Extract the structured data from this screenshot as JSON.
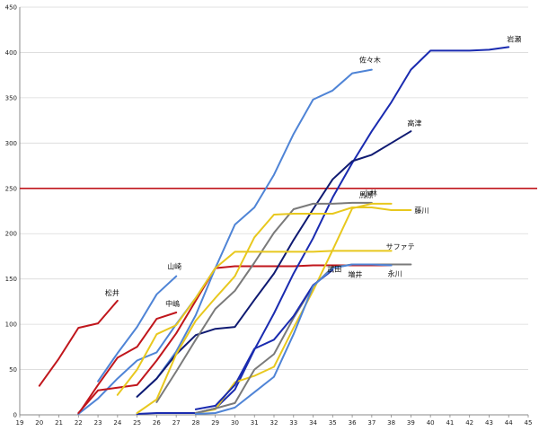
{
  "chart_data": {
    "type": "line",
    "title": "",
    "xlabel": "",
    "ylabel": "",
    "xlim": [
      19,
      45
    ],
    "ylim": [
      0,
      450
    ],
    "xticks": [
      19,
      20,
      21,
      22,
      23,
      24,
      25,
      26,
      27,
      28,
      29,
      30,
      31,
      32,
      33,
      34,
      35,
      36,
      37,
      38,
      39,
      40,
      41,
      42,
      43,
      44,
      45
    ],
    "yticks": [
      0,
      50,
      100,
      150,
      200,
      250,
      300,
      350,
      400,
      450
    ],
    "grid": "horizontal",
    "legend": "none",
    "reference_line": {
      "y": 250,
      "color": "#c0161c"
    },
    "series": [
      {
        "name": "松井",
        "color": "#c0161c",
        "x": [
          20,
          21,
          22,
          23,
          24
        ],
        "y": [
          32,
          62,
          96,
          101,
          126
        ]
      },
      {
        "name": "山崎",
        "color": "#4f84d6",
        "x": [
          23,
          24,
          25,
          26,
          27
        ],
        "y": [
          37,
          68,
          97,
          133,
          153
        ]
      },
      {
        "name": "中嶋",
        "color": "#c0161c",
        "x": [
          22,
          23,
          24,
          25,
          26,
          27
        ],
        "y": [
          1,
          33,
          63,
          75,
          106,
          113
        ]
      },
      {
        "name": "",
        "color": "#4f84d6",
        "x": [
          22,
          23,
          24,
          25,
          26,
          27,
          28,
          29
        ],
        "y": [
          1,
          18,
          40,
          60,
          69,
          100,
          129,
          162
        ]
      },
      {
        "name": "",
        "color": "#c0161c",
        "x": [
          22,
          23,
          24,
          25,
          26,
          27,
          28,
          29,
          30,
          31,
          32,
          33,
          34,
          35,
          36,
          37,
          38
        ],
        "y": [
          2,
          27,
          30,
          33,
          60,
          90,
          126,
          162,
          164,
          164,
          164,
          164,
          165,
          165,
          165,
          165,
          165
        ]
      },
      {
        "name": "佐々木",
        "color": "#4f84d6",
        "x": [
          25,
          26,
          27,
          28,
          29,
          30,
          31,
          32,
          33,
          34,
          35,
          36,
          37
        ],
        "y": [
          20,
          40,
          70,
          110,
          162,
          210,
          229,
          265,
          310,
          348,
          358,
          377,
          381
        ]
      },
      {
        "name": "岩瀬",
        "color": "#1a2bb0",
        "x": [
          25,
          26,
          27,
          28,
          29,
          30,
          31,
          32,
          33,
          34,
          35,
          36,
          37,
          38,
          39,
          40,
          41,
          42,
          43,
          44
        ],
        "y": [
          1,
          2,
          2,
          2,
          7,
          28,
          72,
          112,
          156,
          195,
          240,
          278,
          313,
          345,
          381,
          402,
          402,
          402,
          403,
          406
        ]
      },
      {
        "name": "高津",
        "color": "#0f1a72",
        "x": [
          25,
          26,
          27,
          28,
          29,
          30,
          31,
          32,
          33,
          34,
          35,
          36,
          37,
          38,
          39
        ],
        "y": [
          20,
          40,
          67,
          88,
          95,
          97,
          127,
          156,
          193,
          227,
          260,
          280,
          287,
          300,
          313
        ]
      },
      {
        "name": "小林",
        "color": "#7a7a7a",
        "x": [
          26,
          27,
          28,
          29,
          30,
          31,
          32,
          33,
          34,
          35,
          36,
          37
        ],
        "y": [
          14,
          48,
          83,
          117,
          137,
          168,
          201,
          227,
          233,
          233,
          234,
          234
        ]
      },
      {
        "name": "サファテ",
        "color": "#e8c81e",
        "x": [
          24,
          25,
          26,
          27,
          28,
          29,
          30,
          31,
          32,
          33,
          34,
          35,
          36,
          37,
          38
        ],
        "y": [
          22,
          50,
          89,
          99,
          129,
          162,
          180,
          180,
          180,
          180,
          180,
          181,
          181,
          181,
          181
        ]
      },
      {
        "name": "藤川",
        "color": "#e8c81e",
        "x": [
          25,
          26,
          27,
          28,
          29,
          30,
          31,
          32,
          33,
          34,
          35,
          36,
          37,
          38,
          39
        ],
        "y": [
          2,
          17,
          67,
          104,
          129,
          153,
          196,
          221,
          222,
          222,
          222,
          229,
          229,
          226,
          226
        ]
      },
      {
        "name": "馬原",
        "color": "#e8c81e",
        "x": [
          28,
          29,
          30,
          31,
          32,
          33,
          34,
          35,
          36,
          37,
          38
        ],
        "y": [
          2,
          6,
          36,
          43,
          53,
          96,
          137,
          182,
          228,
          233,
          233
        ]
      },
      {
        "name": "増井",
        "color": "#7a7a7a",
        "x": [
          28,
          29,
          30,
          31,
          32,
          33,
          34,
          35,
          36,
          37,
          38,
          39
        ],
        "y": [
          2,
          7,
          13,
          50,
          67,
          107,
          142,
          163,
          166,
          166,
          166,
          166
        ]
      },
      {
        "name": "武田",
        "color": "#1a2bb0",
        "x": [
          28,
          29,
          30,
          31,
          32,
          33,
          34,
          35
        ],
        "y": [
          6,
          10,
          33,
          73,
          83,
          109,
          143,
          160
        ]
      },
      {
        "name": "永川",
        "color": "#4f84d6",
        "x": [
          28,
          29,
          30,
          31,
          32,
          33,
          34,
          35,
          36,
          37,
          38
        ],
        "y": [
          1,
          2,
          8,
          25,
          42,
          89,
          142,
          162,
          166,
          166,
          165
        ]
      }
    ]
  }
}
